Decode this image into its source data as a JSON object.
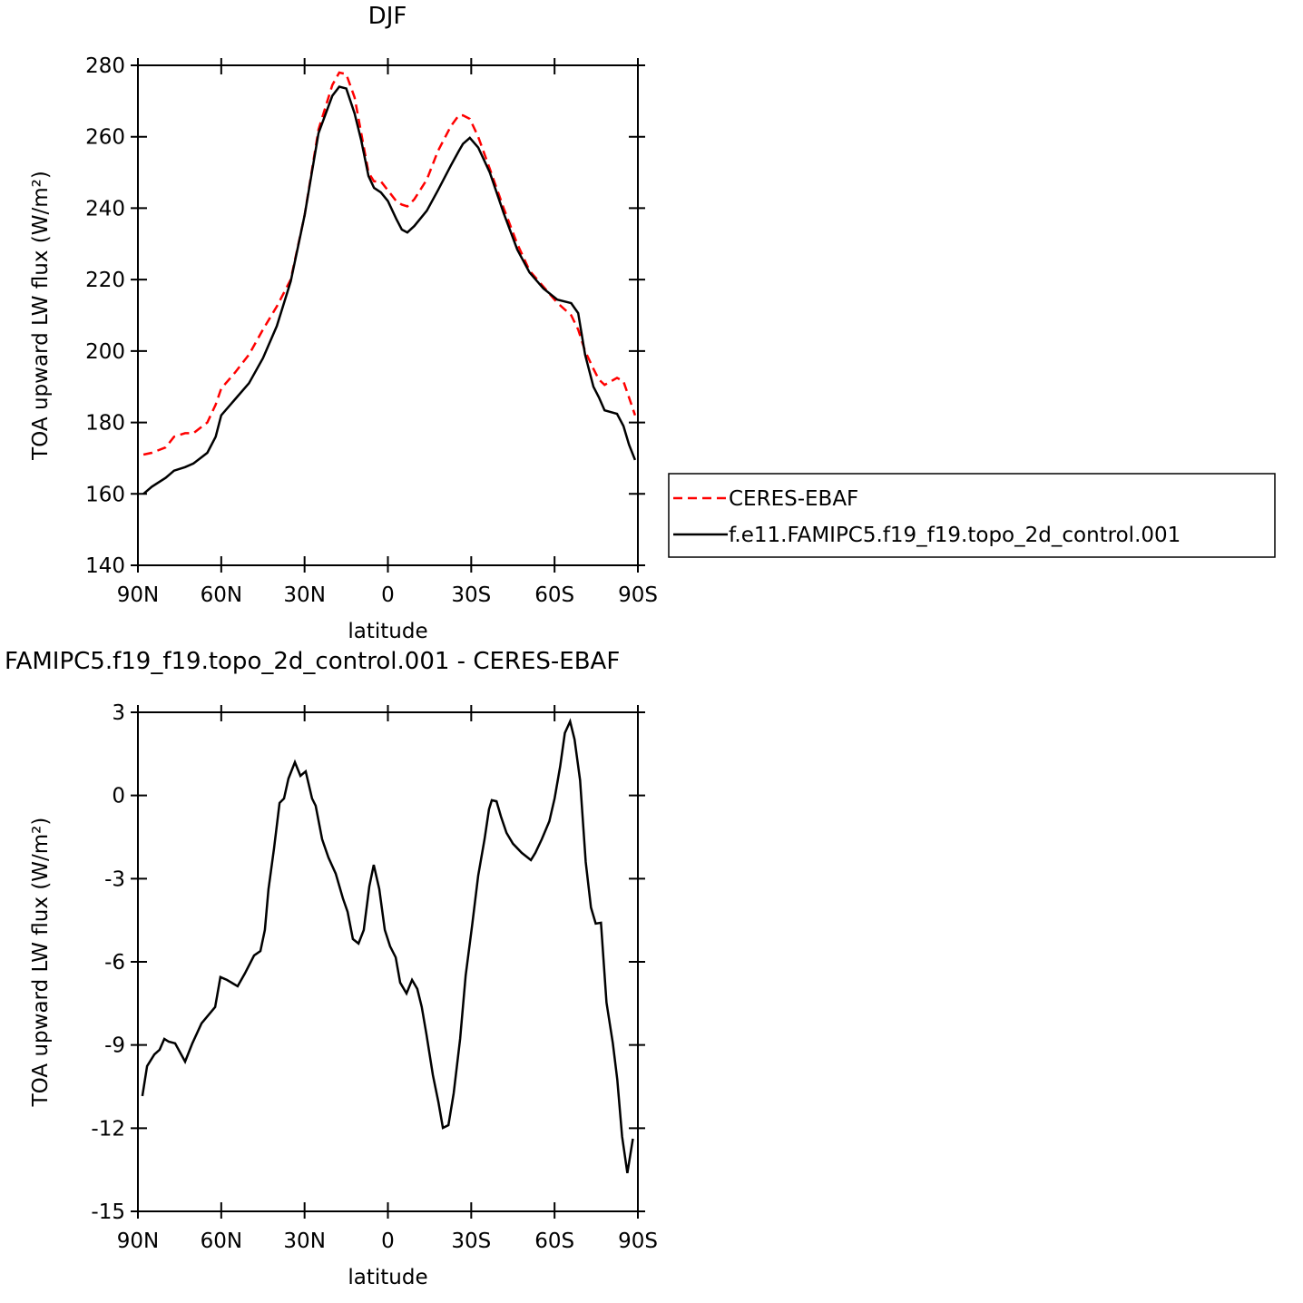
{
  "chart_data": [
    {
      "type": "line",
      "title": "DJF",
      "x": [
        88,
        85,
        80,
        77,
        73,
        70,
        65,
        62,
        60,
        55,
        50,
        45,
        40,
        35,
        30,
        25,
        20,
        17.5,
        15,
        12,
        9.6,
        7,
        5,
        2.5,
        0,
        -3,
        -5,
        -7,
        -9.5,
        -14,
        -18,
        -22.7,
        -25.5,
        -27,
        -29.5,
        -32.5,
        -36.7,
        -41.7,
        -46.6,
        -51,
        -56,
        -61,
        -66,
        -68.5,
        -71,
        -74,
        -76,
        -78,
        -82.5,
        -84.8,
        -86.8,
        -89
      ],
      "xlim": [
        90,
        -90
      ],
      "xticks": [
        {
          "value": 90,
          "label": "90N"
        },
        {
          "value": 60,
          "label": "60N"
        },
        {
          "value": 30,
          "label": "30N"
        },
        0,
        {
          "value": -30,
          "label": "30S"
        },
        {
          "value": -60,
          "label": "60S"
        },
        {
          "value": -90,
          "label": "90S"
        }
      ],
      "ylim": [
        140,
        280
      ],
      "yticks": [
        140,
        160,
        180,
        200,
        220,
        240,
        260,
        280
      ],
      "xlabel": "latitude",
      "ylabel": "TOA upward LW flux (W/m²)",
      "legend": "right",
      "series": [
        {
          "name": "CERES-EBAF",
          "color": "#ff0000",
          "line_style": "dashed",
          "values": [
            171,
            171.5,
            173,
            176,
            177,
            177,
            180,
            185,
            189.5,
            194,
            199,
            206,
            212.5,
            220,
            238,
            262,
            274.5,
            278,
            277.5,
            271,
            261,
            250,
            247.5,
            247.5,
            245,
            242,
            241,
            240.5,
            242.5,
            248,
            256,
            263,
            266,
            266,
            265,
            260,
            251,
            240,
            230,
            222.5,
            218,
            213.5,
            210,
            206,
            200,
            195,
            192,
            190.5,
            192.5,
            191.5,
            187,
            182
          ]
        },
        {
          "name": "f.e11.FAMIPC5.f19_f19.topo_2d_control.001",
          "color": "#000000",
          "line_style": "solid",
          "values": [
            160,
            162,
            164.5,
            166.5,
            167.5,
            168.5,
            171.5,
            176,
            182,
            186.5,
            191,
            198,
            207,
            219.5,
            238,
            261,
            271.5,
            274,
            273.5,
            266.5,
            259,
            249,
            245.7,
            244.4,
            242,
            237,
            234,
            233.2,
            235,
            239.3,
            245,
            252,
            256,
            258,
            259.7,
            257,
            250,
            238.6,
            228.4,
            222,
            217.5,
            214.4,
            213.4,
            210.6,
            199,
            190,
            187,
            183.4,
            182.4,
            179,
            173.8,
            169.5
          ]
        }
      ]
    },
    {
      "type": "line",
      "title": "FAMIPC5.f19_f19.topo_2d_control.001 - CERES-EBAF",
      "x": [
        88.4,
        86.7,
        84.1,
        82.2,
        80.5,
        78.9,
        76.6,
        73,
        70.4,
        67.1,
        62.2,
        60.3,
        58,
        54.1,
        51.5,
        48.2,
        45.9,
        44.3,
        43,
        41,
        39,
        37.4,
        35.8,
        33.5,
        31.5,
        29.6,
        27.3,
        26,
        23.7,
        21.4,
        18.8,
        16.2,
        14.5,
        12.6,
        10.6,
        8.7,
        6.7,
        5.1,
        3.1,
        1.1,
        -0.8,
        -2.8,
        -4.4,
        -6.7,
        -8.7,
        -10.6,
        -12.2,
        -13.9,
        -16.2,
        -18.2,
        -19.8,
        -21.8,
        -23.7,
        -26,
        -28,
        -30.3,
        -32.5,
        -34.8,
        -36.4,
        -37.4,
        -39.1,
        -40.7,
        -42.7,
        -45,
        -48.2,
        -51.5,
        -53.1,
        -55.4,
        -58.1,
        -60,
        -62,
        -63.7,
        -65.6,
        -67.2,
        -69.2,
        -71.2,
        -73.1,
        -74.8,
        -76.7,
        -78.7,
        -81,
        -82.6,
        -84.3,
        -86.2,
        -88.2
      ],
      "xlim": [
        90,
        -90
      ],
      "xticks": [
        {
          "value": 90,
          "label": "90N"
        },
        {
          "value": 60,
          "label": "60N"
        },
        {
          "value": 30,
          "label": "30N"
        },
        0,
        {
          "value": -30,
          "label": "30S"
        },
        {
          "value": -60,
          "label": "60S"
        },
        {
          "value": -90,
          "label": "90S"
        }
      ],
      "ylim": [
        -15,
        3
      ],
      "yticks": [
        -15,
        -12,
        -9,
        -6,
        -3,
        0,
        3
      ],
      "xlabel": "latitude",
      "ylabel": "TOA upward LW flux (W/m²)",
      "series": [
        {
          "color": "#000000",
          "line_style": "solid",
          "values": [
            -10.84,
            -9.76,
            -9.34,
            -9.17,
            -8.78,
            -8.88,
            -8.94,
            -9.6,
            -8.94,
            -8.22,
            -7.63,
            -6.55,
            -6.65,
            -6.88,
            -6.42,
            -5.77,
            -5.61,
            -4.85,
            -3.38,
            -1.91,
            -0.27,
            -0.11,
            0.61,
            1.2,
            0.71,
            0.87,
            -0.11,
            -0.37,
            -1.58,
            -2.24,
            -2.82,
            -3.71,
            -4.2,
            -5.18,
            -5.34,
            -4.85,
            -3.28,
            -2.5,
            -3.38,
            -4.85,
            -5.44,
            -5.84,
            -6.75,
            -7.14,
            -6.65,
            -6.98,
            -7.63,
            -8.62,
            -10.09,
            -11.07,
            -11.99,
            -11.89,
            -10.74,
            -8.78,
            -6.49,
            -4.69,
            -2.89,
            -1.58,
            -0.5,
            -0.17,
            -0.21,
            -0.76,
            -1.35,
            -1.74,
            -2.07,
            -2.33,
            -2.07,
            -1.58,
            -0.93,
            -0.11,
            1.04,
            2.25,
            2.67,
            2.02,
            0.55,
            -2.4,
            -4.04,
            -4.62,
            -4.59,
            -7.47,
            -8.94,
            -10.25,
            -12.3,
            -13.62,
            -12.38
          ]
        }
      ]
    }
  ]
}
